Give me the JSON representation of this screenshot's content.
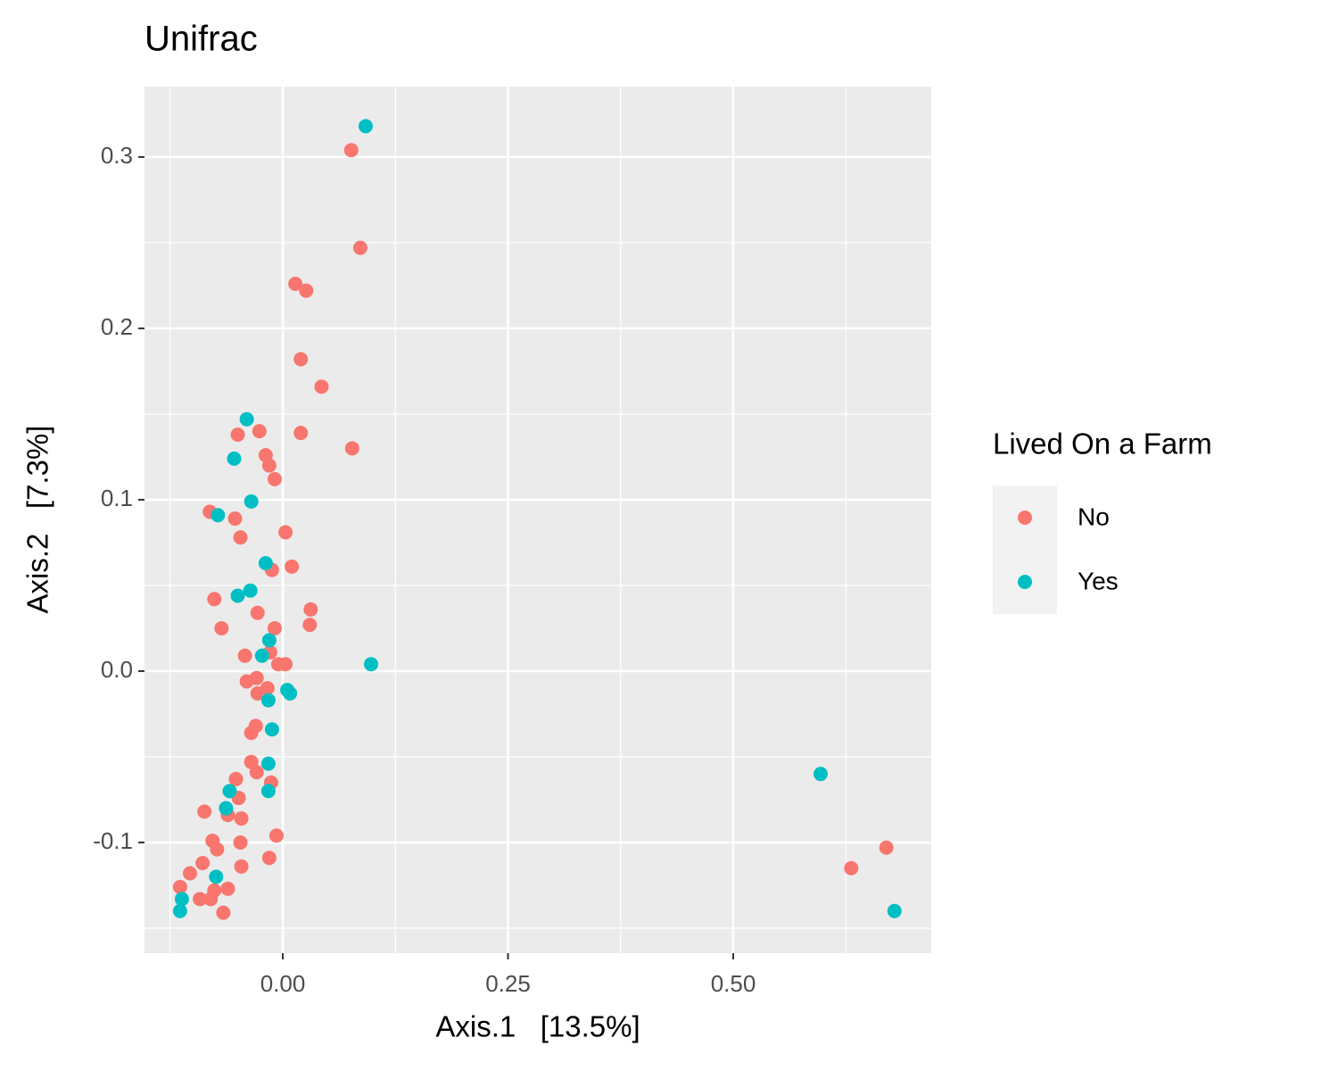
{
  "chart_data": {
    "type": "scatter",
    "title": "Unifrac",
    "x_label": "Axis.1   [13.5%]",
    "y_label": "Axis.2   [7.3%]",
    "xlim": [
      -0.1535,
      0.7198
    ],
    "ylim": [
      -0.1646,
      0.3411
    ],
    "xticks": [
      {
        "value": 0,
        "label": "0.00"
      },
      0.25,
      {
        "value": 0.5,
        "label": "0.50"
      }
    ],
    "yticks": [
      {
        "value": -0.1,
        "label": "-0.1"
      },
      {
        "value": 0,
        "label": "0.0"
      },
      0.1,
      0.2,
      0.3
    ],
    "xminor": [
      -0.125,
      0.125,
      0.375,
      0.625
    ],
    "yminor": [
      -0.15,
      -0.05,
      0.05,
      0.15,
      0.25
    ],
    "grid": true,
    "legend_title": "Lived On a Farm",
    "legend_position": "right",
    "series": [
      {
        "name": "No",
        "color": "#F8766D",
        "x": [
          0.076,
          0.086,
          0.014,
          0.026,
          0.02,
          0.043,
          0.02,
          0.077,
          -0.05,
          -0.026,
          -0.019,
          -0.015,
          -0.009,
          -0.081,
          -0.053,
          -0.047,
          0.003,
          0.01,
          -0.012,
          -0.076,
          -0.028,
          0.031,
          -0.068,
          0.03,
          -0.009,
          -0.042,
          -0.014,
          -0.005,
          0.003,
          -0.04,
          -0.029,
          -0.028,
          -0.017,
          -0.03,
          -0.035,
          -0.035,
          -0.029,
          -0.013,
          -0.052,
          -0.049,
          -0.087,
          -0.046,
          -0.061,
          -0.007,
          -0.078,
          -0.047,
          -0.073,
          -0.089,
          -0.103,
          -0.046,
          -0.015,
          -0.114,
          -0.076,
          -0.061,
          -0.092,
          -0.08,
          -0.066,
          0.631,
          0.67
        ],
        "y": [
          0.304,
          0.247,
          0.226,
          0.222,
          0.182,
          0.166,
          0.139,
          0.13,
          0.138,
          0.14,
          0.126,
          0.12,
          0.112,
          0.093,
          0.089,
          0.078,
          0.081,
          0.061,
          0.059,
          0.042,
          0.034,
          0.036,
          0.025,
          0.027,
          0.025,
          0.009,
          0.011,
          0.004,
          0.004,
          -0.006,
          -0.004,
          -0.013,
          -0.01,
          -0.032,
          -0.036,
          -0.053,
          -0.059,
          -0.065,
          -0.063,
          -0.074,
          -0.082,
          -0.086,
          -0.084,
          -0.096,
          -0.099,
          -0.1,
          -0.104,
          -0.112,
          -0.118,
          -0.114,
          -0.109,
          -0.126,
          -0.128,
          -0.127,
          -0.133,
          -0.133,
          -0.141,
          -0.115,
          -0.103
        ]
      },
      {
        "name": "Yes",
        "color": "#00BFC4",
        "x": [
          0.092,
          -0.04,
          -0.054,
          -0.035,
          -0.072,
          -0.019,
          -0.05,
          -0.036,
          -0.015,
          -0.023,
          0.098,
          0.005,
          0.008,
          -0.016,
          -0.012,
          -0.016,
          -0.016,
          -0.059,
          -0.063,
          -0.074,
          -0.112,
          -0.114,
          0.597,
          0.679
        ],
        "y": [
          0.318,
          0.147,
          0.124,
          0.099,
          0.091,
          0.063,
          0.044,
          0.047,
          0.018,
          0.009,
          0.004,
          -0.011,
          -0.013,
          -0.017,
          -0.034,
          -0.054,
          -0.07,
          -0.07,
          -0.08,
          -0.12,
          -0.133,
          -0.14,
          -0.06,
          -0.14
        ]
      }
    ]
  }
}
